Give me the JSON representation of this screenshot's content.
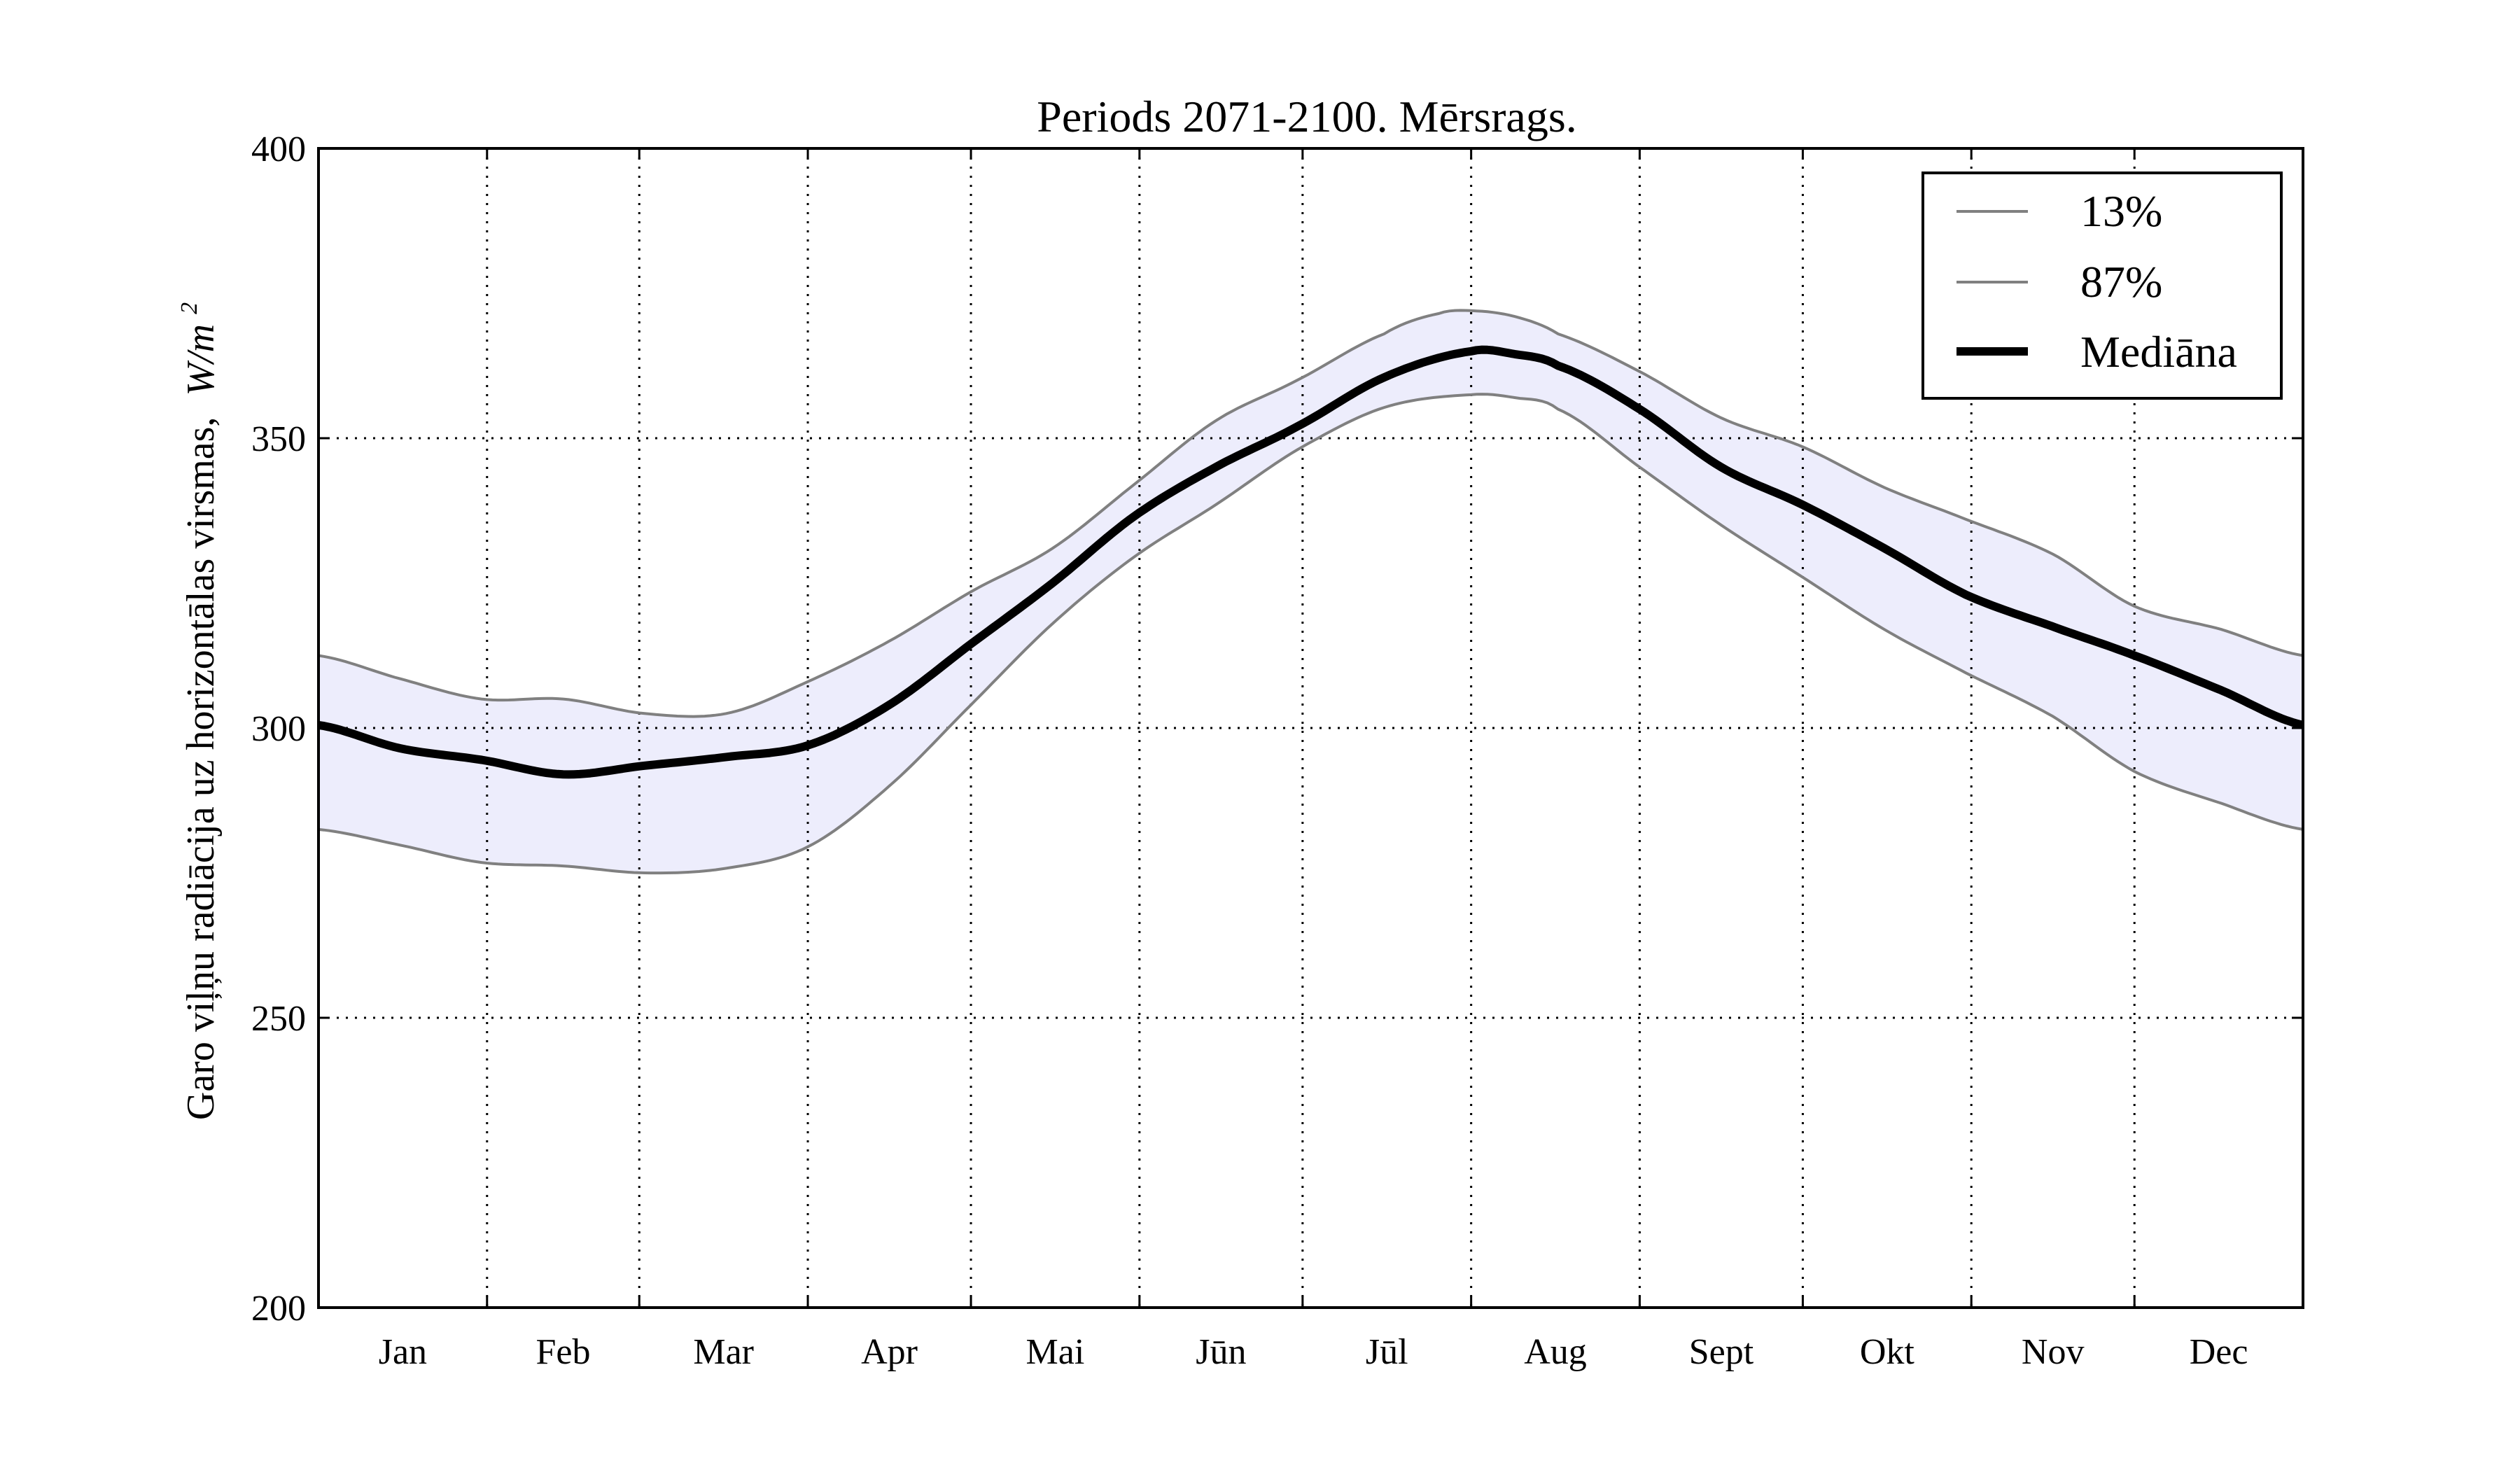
{
  "chart_data": {
    "type": "line",
    "title": "Periods 2071-2100. Mērsrags.",
    "ylabel": "Garo viļņu radiācija uz horizontālas virsmas, W/m²",
    "ylabel_text": "Garo viļņu radiācija uz horizontālas virsmas,",
    "ylabel_unit": "W/m",
    "ylabel_unit_exp": "2",
    "xlabel": "",
    "ylim": [
      200,
      400
    ],
    "yticks": [
      200,
      250,
      300,
      350,
      400
    ],
    "xlim": [
      0,
      365
    ],
    "month_labels": [
      "Jan",
      "Feb",
      "Mar",
      "Apr",
      "Mai",
      "Jūn",
      "Jūl",
      "Aug",
      "Sept",
      "Okt",
      "Nov",
      "Dec"
    ],
    "month_centers": [
      15.5,
      45,
      74.5,
      105,
      135.5,
      166,
      196.5,
      227.5,
      258,
      288.5,
      319,
      349.5
    ],
    "month_boundaries": [
      31,
      59,
      90,
      120,
      151,
      181,
      212,
      243,
      273,
      304,
      334
    ],
    "grid": true,
    "legend_position": "top-right",
    "band_color": "#ededfc",
    "series": [
      {
        "name": "13%",
        "color": "#808080",
        "x": [
          0,
          15,
          30,
          45,
          60,
          75,
          90,
          105,
          120,
          135,
          150,
          165,
          180,
          196,
          212,
          220,
          228,
          243,
          258,
          273,
          288,
          303,
          319,
          334,
          350,
          365
        ],
        "values": [
          282.5,
          279.8,
          276.8,
          276.2,
          275.0,
          275.8,
          279.5,
          290.0,
          304.0,
          318.0,
          329.5,
          338.5,
          348.0,
          355.3,
          357.5,
          357.0,
          355.0,
          345.0,
          335.0,
          326.0,
          317.0,
          309.5,
          302.0,
          292.5,
          287.0,
          282.5
        ]
      },
      {
        "name": "87%",
        "color": "#808080",
        "x": [
          0,
          15,
          30,
          45,
          60,
          75,
          90,
          105,
          120,
          135,
          150,
          165,
          180,
          196,
          206,
          212,
          220,
          228,
          243,
          258,
          273,
          288,
          303,
          319,
          334,
          350,
          365
        ],
        "values": [
          312.5,
          308.5,
          305.0,
          305.0,
          302.5,
          302.5,
          308.0,
          315.0,
          323.5,
          331.0,
          342.0,
          353.0,
          360.0,
          368.0,
          371.5,
          372.0,
          371.0,
          368.0,
          361.5,
          353.5,
          348.5,
          341.5,
          336.0,
          330.0,
          321.0,
          317.0,
          312.5
        ]
      },
      {
        "name": "Mediāna",
        "color": "#000000",
        "x": [
          0,
          15,
          30,
          45,
          60,
          75,
          90,
          105,
          120,
          135,
          150,
          165,
          180,
          196,
          212,
          220,
          228,
          243,
          258,
          273,
          288,
          303,
          319,
          334,
          350,
          365
        ],
        "values": [
          300.5,
          296.5,
          294.5,
          292.0,
          293.5,
          295.0,
          297.0,
          304.0,
          314.5,
          325.0,
          336.5,
          345.0,
          352.0,
          360.5,
          365.0,
          364.5,
          362.5,
          355.0,
          345.0,
          338.5,
          331.0,
          323.0,
          317.5,
          312.5,
          306.5,
          300.5
        ]
      }
    ]
  }
}
